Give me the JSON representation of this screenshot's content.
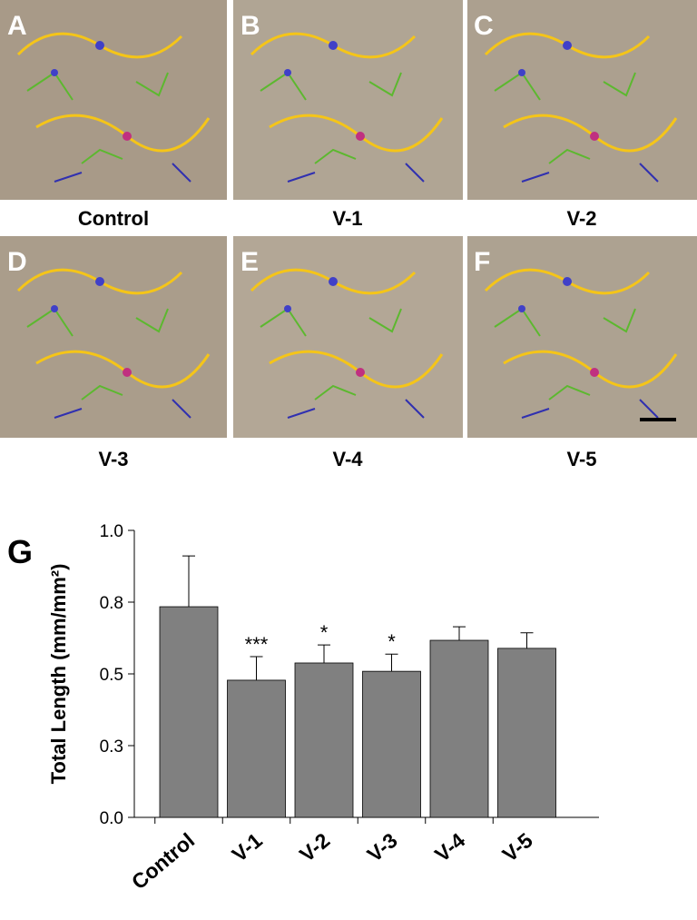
{
  "panels": [
    {
      "letter": "A",
      "caption": "Control"
    },
    {
      "letter": "B",
      "caption": "V-1"
    },
    {
      "letter": "C",
      "caption": "V-2"
    },
    {
      "letter": "D",
      "caption": "V-3"
    },
    {
      "letter": "E",
      "caption": "V-4"
    },
    {
      "letter": "F",
      "caption": "V-5"
    }
  ],
  "chart_data": {
    "type": "bar",
    "panel_label": "G",
    "ylabel": "Total Length (mm/mm²)",
    "categories": [
      "Control",
      "V-1",
      "V-2",
      "V-3",
      "V-4",
      "V-5"
    ],
    "values": [
      0.734,
      0.478,
      0.538,
      0.509,
      0.617,
      0.589
    ],
    "errors": [
      0.177,
      0.082,
      0.063,
      0.06,
      0.047,
      0.054
    ],
    "annotations": [
      null,
      "***",
      "*",
      "*",
      null,
      null
    ],
    "color": "#808080",
    "ylim": [
      0,
      1
    ],
    "yticks": [
      {
        "value": 0,
        "label": "0.0"
      },
      {
        "value": 0.25,
        "label": "0.3"
      },
      0.5,
      {
        "value": 0.75,
        "label": "0.8"
      },
      {
        "value": 1,
        "label": "1.0"
      }
    ]
  }
}
